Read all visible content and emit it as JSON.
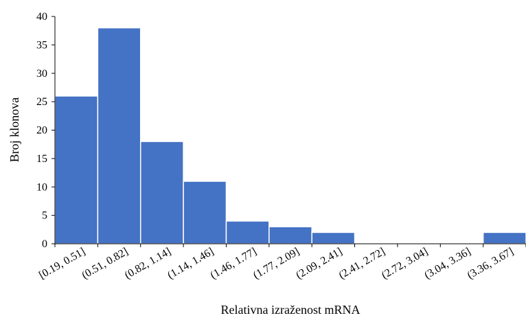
{
  "chart_data": {
    "type": "bar",
    "title": "",
    "xlabel": "Relativna izraženost mRNA",
    "ylabel": "Broj klonova",
    "ylim": [
      0,
      40
    ],
    "yticks": [
      "0",
      "5",
      "10",
      "15",
      "20",
      "25",
      "30",
      "35",
      "40"
    ],
    "categories": [
      "[0.19, 0.51]",
      "(0.51, 0.82]",
      "(0.82, 1.14]",
      "(1.14, 1.46]",
      "(1.46, 1.77]",
      "(1.77, 2.09]",
      "(2.09, 2.41]",
      "(2.41, 2.72]",
      "(2.72, 3.04]",
      "(3.04, 3.36]",
      "(3.36, 3.67]"
    ],
    "values": [
      26,
      38,
      18,
      11,
      4,
      3,
      2,
      0,
      0,
      0,
      2
    ],
    "bar_color": "#4472C4",
    "grid": false,
    "legend": "none"
  }
}
